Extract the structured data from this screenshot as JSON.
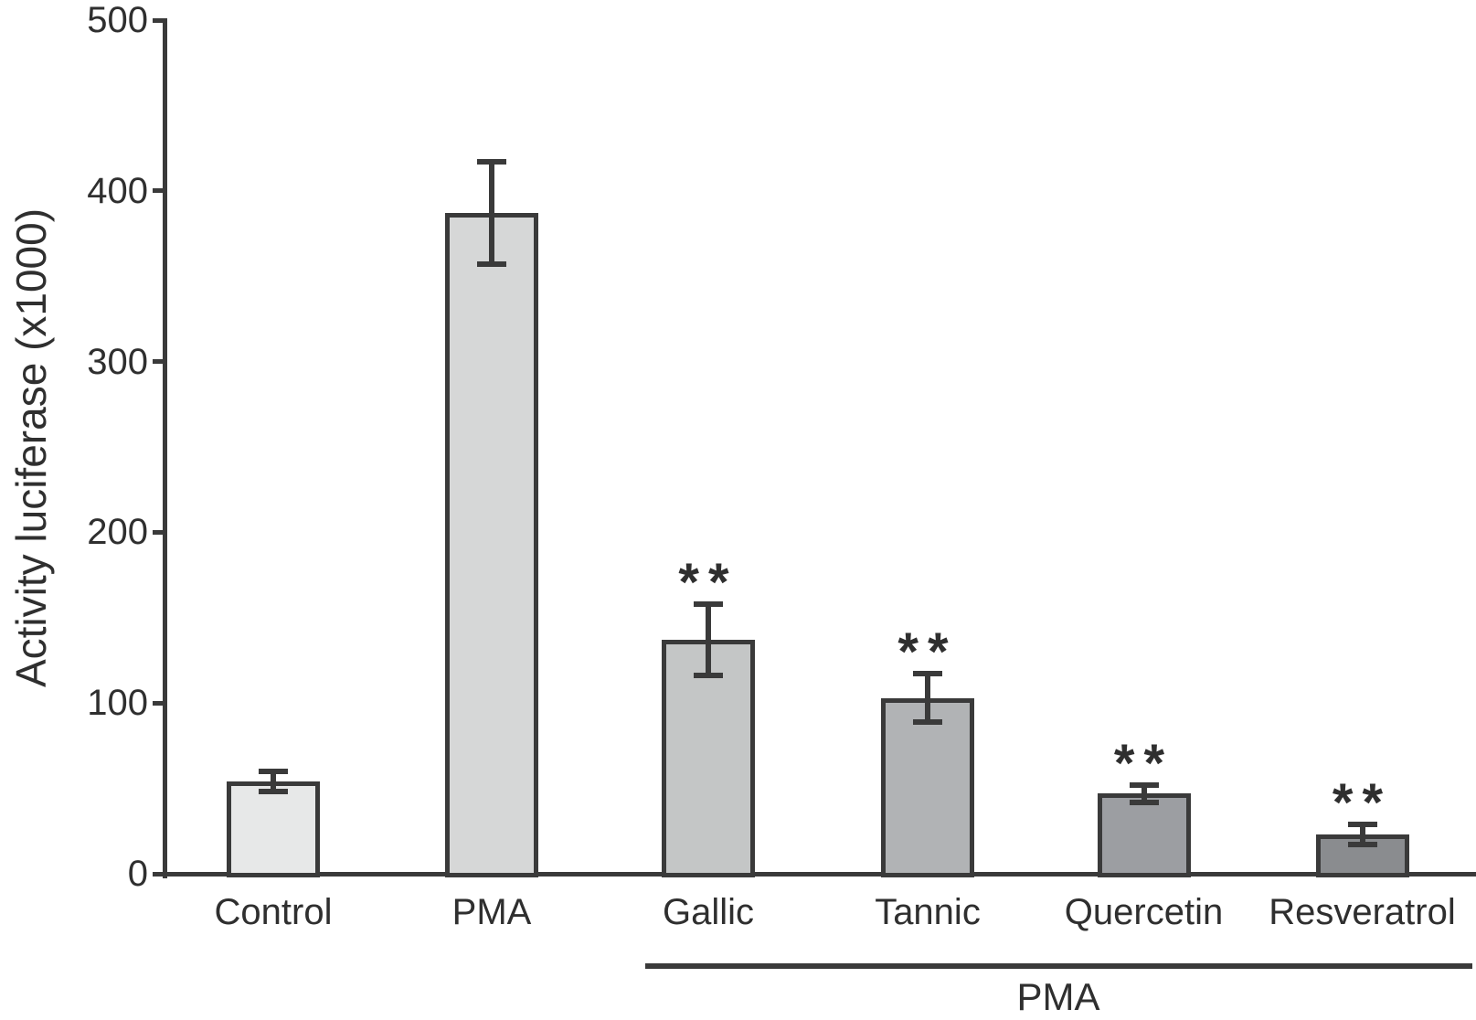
{
  "figure": {
    "background": "#ffffff",
    "ink_color": "#3a3a3a",
    "text_color": "#2f2f2f"
  },
  "chart_data": {
    "type": "bar",
    "title": "",
    "xlabel": "",
    "ylabel": "Activity luciferase (x1000)",
    "ylim": [
      0,
      500
    ],
    "yticks": [
      0,
      100,
      200,
      300,
      400,
      500
    ],
    "grid": false,
    "legend_position": "none",
    "categories": [
      "Control",
      "PMA",
      "Gallic",
      "Tannic",
      "Quercetin",
      "Resveratrol"
    ],
    "values": [
      54,
      387,
      137,
      103,
      47,
      23
    ],
    "error_bars": [
      6,
      30,
      21,
      14,
      5,
      6
    ],
    "significance": [
      "",
      "",
      "**",
      "**",
      "**",
      "**"
    ],
    "bar_colors": [
      "#e7e8e8",
      "#d6d7d7",
      "#c4c6c6",
      "#b1b3b5",
      "#9c9ea2",
      "#8a8c8f"
    ],
    "bar_border_color": "#3a3a3a",
    "group_annotation": {
      "label": "PMA",
      "categories": [
        "Gallic",
        "Tannic",
        "Quercetin",
        "Resveratrol"
      ]
    }
  }
}
